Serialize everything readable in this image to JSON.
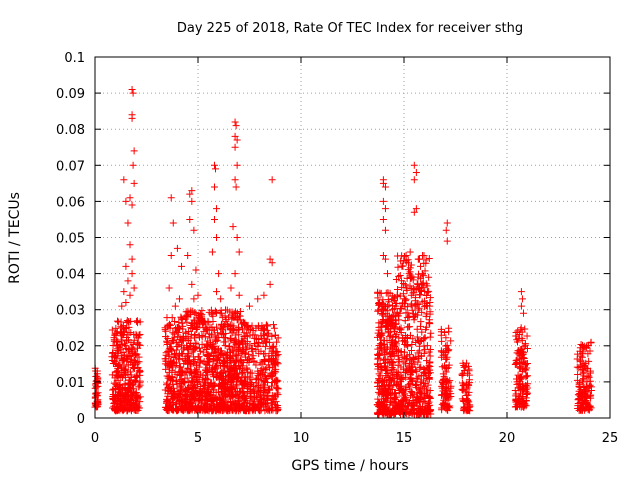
{
  "chart_data": {
    "type": "scatter",
    "title": "Day 225 of 2018, Rate Of TEC Index for receiver sthg",
    "xlabel": "GPS time / hours",
    "ylabel": "ROTI / TECUs",
    "xlim": [
      0,
      25
    ],
    "ylim": [
      0,
      0.1
    ],
    "grid": true,
    "marker": "plus",
    "marker_color": "#ff0000",
    "x_ticks": [
      0,
      5,
      10,
      15,
      20,
      25
    ],
    "x_tick_labels": [
      "0",
      "5",
      "10",
      "15",
      "20",
      "25"
    ],
    "y_ticks": [
      0,
      0.01,
      0.02,
      0.03,
      0.04,
      0.05,
      0.06,
      0.07,
      0.08,
      0.09,
      0.1
    ],
    "y_tick_labels": [
      "0",
      "0.01",
      "0.02",
      "0.03",
      "0.04",
      "0.05",
      "0.06",
      "0.07",
      "0.08",
      "0.09",
      "0.1"
    ],
    "clusters": [
      {
        "x_start": 0.0,
        "x_end": 0.15,
        "y_min": 0.003,
        "y_max": 0.014,
        "count": 45,
        "outliers": []
      },
      {
        "x_start": 0.8,
        "x_end": 2.2,
        "y_min": 0.002,
        "y_max": 0.027,
        "count": 380,
        "outliers": [
          [
            1.8,
            0.091
          ],
          [
            1.85,
            0.09
          ],
          [
            1.8,
            0.084
          ],
          [
            1.8,
            0.083
          ],
          [
            1.9,
            0.074
          ],
          [
            1.85,
            0.07
          ],
          [
            1.9,
            0.065
          ],
          [
            1.4,
            0.066
          ],
          [
            1.5,
            0.06
          ],
          [
            1.7,
            0.061
          ],
          [
            1.8,
            0.059
          ],
          [
            1.6,
            0.054
          ],
          [
            1.7,
            0.048
          ],
          [
            1.5,
            0.042
          ],
          [
            1.8,
            0.044
          ],
          [
            1.6,
            0.038
          ],
          [
            1.4,
            0.035
          ],
          [
            1.7,
            0.034
          ],
          [
            1.3,
            0.031
          ],
          [
            1.9,
            0.036
          ],
          [
            1.5,
            0.032
          ],
          [
            1.8,
            0.04
          ]
        ]
      },
      {
        "x_start": 3.4,
        "x_end": 4.4,
        "y_min": 0.002,
        "y_max": 0.028,
        "count": 260,
        "outliers": [
          [
            3.7,
            0.061
          ],
          [
            3.8,
            0.054
          ],
          [
            3.7,
            0.045
          ],
          [
            4.0,
            0.047
          ],
          [
            3.6,
            0.036
          ],
          [
            3.9,
            0.031
          ],
          [
            4.2,
            0.042
          ],
          [
            4.1,
            0.033
          ]
        ]
      },
      {
        "x_start": 4.4,
        "x_end": 5.4,
        "y_min": 0.002,
        "y_max": 0.03,
        "count": 300,
        "outliers": [
          [
            4.7,
            0.063
          ],
          [
            4.6,
            0.062
          ],
          [
            4.7,
            0.06
          ],
          [
            4.6,
            0.055
          ],
          [
            4.8,
            0.052
          ],
          [
            4.5,
            0.045
          ],
          [
            4.9,
            0.041
          ],
          [
            4.7,
            0.037
          ],
          [
            5.0,
            0.034
          ],
          [
            4.8,
            0.033
          ]
        ]
      },
      {
        "x_start": 5.4,
        "x_end": 6.4,
        "y_min": 0.002,
        "y_max": 0.03,
        "count": 300,
        "outliers": [
          [
            5.8,
            0.07
          ],
          [
            5.85,
            0.069
          ],
          [
            5.8,
            0.064
          ],
          [
            5.9,
            0.058
          ],
          [
            5.8,
            0.055
          ],
          [
            5.9,
            0.05
          ],
          [
            5.7,
            0.046
          ],
          [
            6.0,
            0.04
          ],
          [
            5.9,
            0.035
          ],
          [
            6.1,
            0.033
          ]
        ]
      },
      {
        "x_start": 6.4,
        "x_end": 7.3,
        "y_min": 0.002,
        "y_max": 0.03,
        "count": 300,
        "outliers": [
          [
            6.8,
            0.082
          ],
          [
            6.85,
            0.081
          ],
          [
            6.8,
            0.078
          ],
          [
            6.9,
            0.077
          ],
          [
            6.8,
            0.075
          ],
          [
            6.9,
            0.07
          ],
          [
            6.8,
            0.066
          ],
          [
            6.85,
            0.064
          ],
          [
            6.7,
            0.053
          ],
          [
            6.9,
            0.05
          ],
          [
            7.0,
            0.046
          ],
          [
            6.8,
            0.04
          ],
          [
            6.6,
            0.036
          ],
          [
            7.0,
            0.034
          ]
        ]
      },
      {
        "x_start": 7.3,
        "x_end": 8.9,
        "y_min": 0.002,
        "y_max": 0.026,
        "count": 320,
        "outliers": [
          [
            8.6,
            0.066
          ],
          [
            8.5,
            0.044
          ],
          [
            8.6,
            0.043
          ],
          [
            8.5,
            0.037
          ],
          [
            7.9,
            0.033
          ],
          [
            7.5,
            0.031
          ],
          [
            8.2,
            0.034
          ]
        ]
      },
      {
        "x_start": 13.7,
        "x_end": 14.6,
        "y_min": 0.001,
        "y_max": 0.035,
        "count": 360,
        "outliers": [
          [
            14.0,
            0.066
          ],
          [
            14.0,
            0.065
          ],
          [
            14.1,
            0.064
          ],
          [
            14.0,
            0.06
          ],
          [
            14.1,
            0.058
          ],
          [
            14.0,
            0.055
          ],
          [
            14.1,
            0.052
          ],
          [
            14.0,
            0.045
          ],
          [
            14.1,
            0.044
          ],
          [
            14.2,
            0.04
          ]
        ]
      },
      {
        "x_start": 14.6,
        "x_end": 16.3,
        "y_min": 0.001,
        "y_max": 0.045,
        "count": 500,
        "outliers": [
          [
            15.5,
            0.07
          ],
          [
            15.6,
            0.068
          ],
          [
            15.5,
            0.066
          ],
          [
            15.6,
            0.058
          ],
          [
            15.5,
            0.057
          ],
          [
            15.1,
            0.045
          ],
          [
            15.3,
            0.046
          ],
          [
            15.7,
            0.044
          ],
          [
            15.9,
            0.045
          ],
          [
            15.8,
            0.042
          ],
          [
            15.9,
            0.04
          ]
        ]
      },
      {
        "x_start": 16.8,
        "x_end": 17.3,
        "y_min": 0.002,
        "y_max": 0.025,
        "count": 90,
        "outliers": [
          [
            17.1,
            0.054
          ],
          [
            17.05,
            0.052
          ],
          [
            17.1,
            0.049
          ]
        ]
      },
      {
        "x_start": 17.8,
        "x_end": 18.2,
        "y_min": 0.002,
        "y_max": 0.016,
        "count": 60,
        "outliers": []
      },
      {
        "x_start": 20.4,
        "x_end": 21.0,
        "y_min": 0.003,
        "y_max": 0.025,
        "count": 140,
        "outliers": [
          [
            20.7,
            0.035
          ],
          [
            20.75,
            0.033
          ],
          [
            20.7,
            0.031
          ],
          [
            20.8,
            0.029
          ]
        ]
      },
      {
        "x_start": 23.4,
        "x_end": 24.1,
        "y_min": 0.002,
        "y_max": 0.021,
        "count": 140,
        "outliers": []
      }
    ]
  }
}
